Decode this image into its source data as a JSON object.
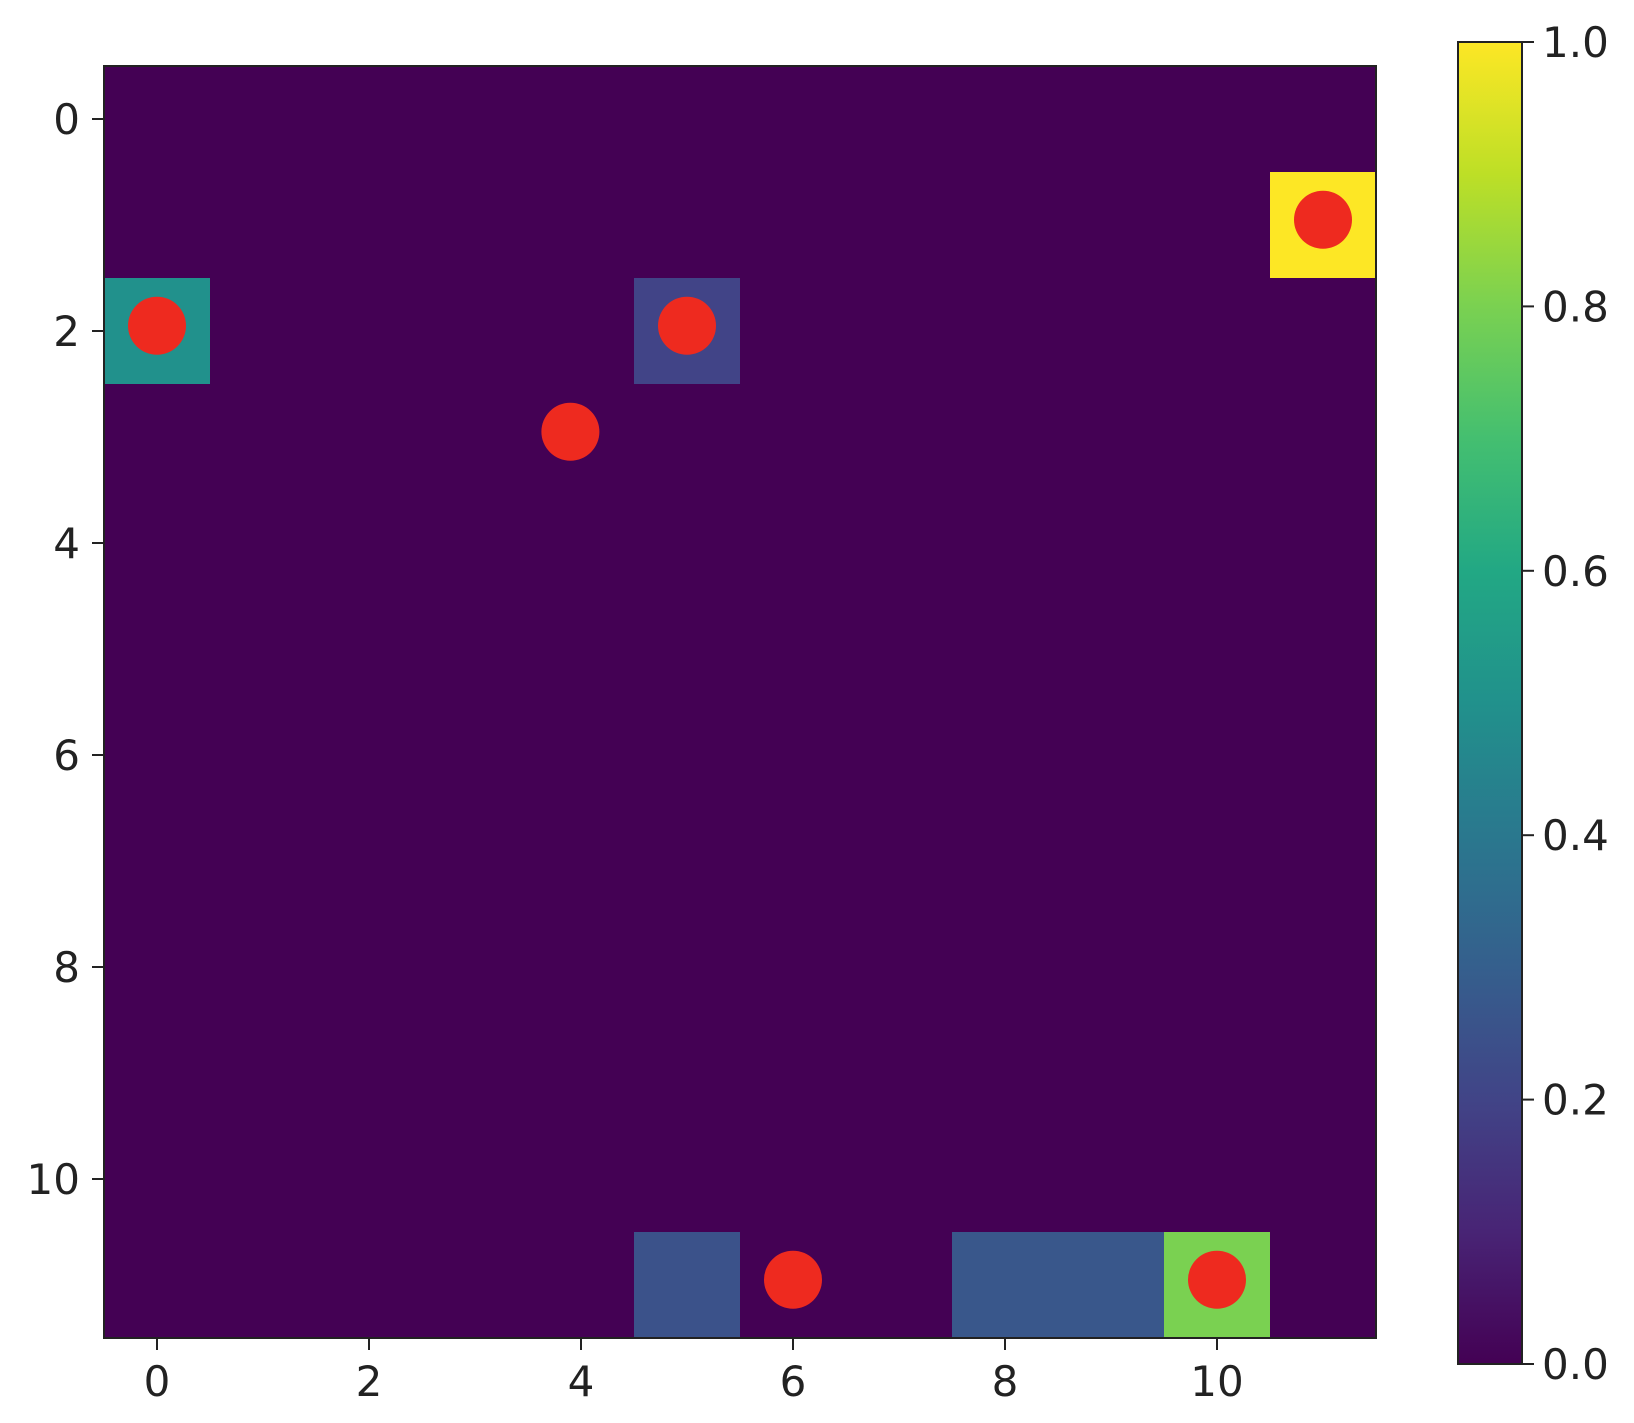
{
  "chart_data": {
    "type": "heatmap",
    "title": "",
    "xlabel": "",
    "ylabel": "",
    "grid": false,
    "rows": 12,
    "cols": 12,
    "xlim": [
      -0.5,
      11.5
    ],
    "ylim": [
      11.5,
      -0.5
    ],
    "x_ticks": [
      0,
      2,
      4,
      6,
      8,
      10
    ],
    "y_ticks": [
      0,
      2,
      4,
      6,
      8,
      10
    ],
    "x_tick_labels": [
      "0",
      "2",
      "4",
      "6",
      "8",
      "10"
    ],
    "y_tick_labels": [
      "0",
      "2",
      "4",
      "6",
      "8",
      "10"
    ],
    "colormap": "viridis",
    "background_value": 0.0,
    "cells": [
      {
        "row": 1,
        "col": 11,
        "value": 1.0
      },
      {
        "row": 2,
        "col": 0,
        "value": 0.5
      },
      {
        "row": 2,
        "col": 5,
        "value": 0.2
      },
      {
        "row": 11,
        "col": 5,
        "value": 0.25
      },
      {
        "row": 11,
        "col": 8,
        "value": 0.27
      },
      {
        "row": 11,
        "col": 9,
        "value": 0.27
      },
      {
        "row": 11,
        "col": 10,
        "value": 0.8
      }
    ],
    "markers": {
      "color": "#ee2a1f",
      "points": [
        {
          "x": 11,
          "y": 0.95
        },
        {
          "x": 0,
          "y": 1.95
        },
        {
          "x": 5,
          "y": 1.95
        },
        {
          "x": 3.9,
          "y": 2.95
        },
        {
          "x": 6.0,
          "y": 10.95
        },
        {
          "x": 10.0,
          "y": 10.95
        }
      ]
    },
    "colorbar": {
      "min": 0.0,
      "max": 1.0,
      "ticks": [
        0.0,
        0.2,
        0.4,
        0.6,
        0.8,
        1.0
      ],
      "tick_labels": [
        "0.0",
        "0.2",
        "0.4",
        "0.6",
        "0.8",
        "1.0"
      ]
    }
  }
}
